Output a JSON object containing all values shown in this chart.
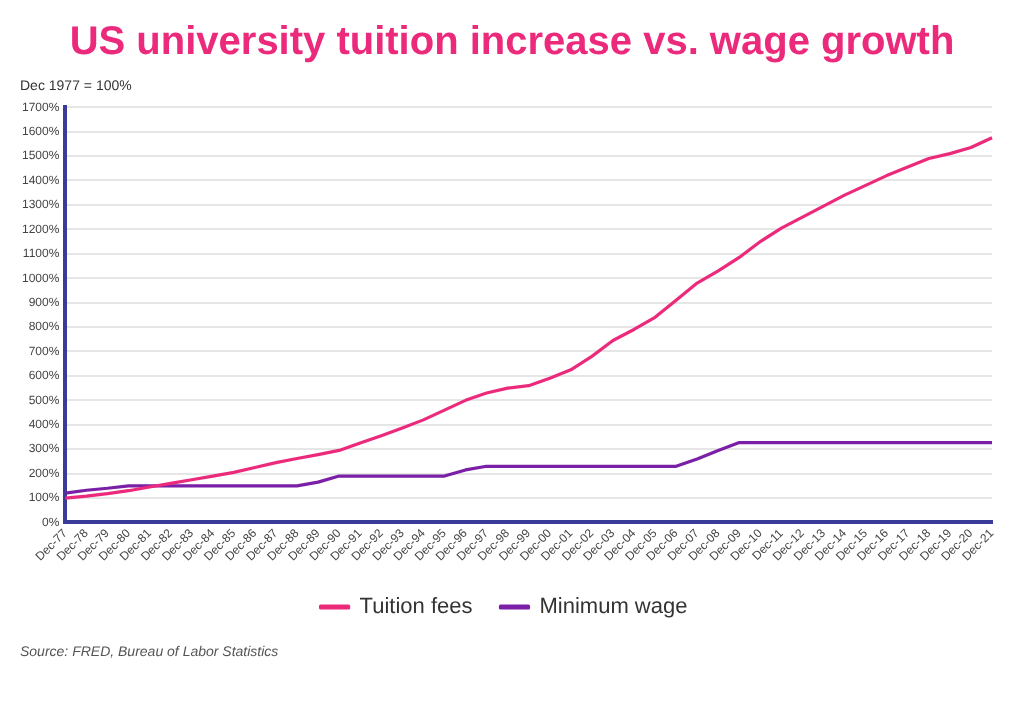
{
  "chart_data": {
    "type": "line",
    "title": "US university tuition increase vs. wage growth",
    "ylabel": "Dec 1977 = 100%",
    "categories": [
      "Dec-77",
      "Dec-78",
      "Dec-79",
      "Dec-80",
      "Dec-81",
      "Dec-82",
      "Dec-83",
      "Dec-84",
      "Dec-85",
      "Dec-86",
      "Dec-87",
      "Dec-88",
      "Dec-89",
      "Dec-90",
      "Dec-91",
      "Dec-92",
      "Dec-93",
      "Dec-94",
      "Dec-95",
      "Dec-96",
      "Dec-97",
      "Dec-98",
      "Dec-99",
      "Dec-00",
      "Dec-01",
      "Dec-02",
      "Dec-03",
      "Dec-04",
      "Dec-05",
      "Dec-06",
      "Dec-07",
      "Dec-08",
      "Dec-09",
      "Dec-10",
      "Dec-11",
      "Dec-12",
      "Dec-13",
      "Dec-14",
      "Dec-15",
      "Dec-16",
      "Dec-17",
      "Dec-18",
      "Dec-19",
      "Dec-20",
      "Dec-21"
    ],
    "series": [
      {
        "name": "Tuition fees",
        "color": "#ec2a7c",
        "values": [
          100,
          108,
          118,
          130,
          145,
          160,
          175,
          190,
          205,
          225,
          245,
          262,
          278,
          295,
          325,
          355,
          387,
          420,
          460,
          500,
          530,
          550,
          560,
          590,
          625,
          680,
          745,
          790,
          840,
          910,
          980,
          1030,
          1085,
          1150,
          1205,
          1250,
          1295,
          1340,
          1380,
          1420,
          1455,
          1490,
          1510,
          1535,
          1575
        ]
      },
      {
        "name": "Minimum wage",
        "color": "#7a1fa6",
        "values": [
          120,
          132,
          140,
          150,
          150,
          150,
          150,
          150,
          150,
          150,
          150,
          150,
          165,
          190,
          190,
          190,
          190,
          190,
          190,
          215,
          230,
          230,
          230,
          230,
          230,
          230,
          230,
          230,
          230,
          230,
          260,
          295,
          327,
          327,
          327,
          327,
          327,
          327,
          327,
          327,
          327,
          327,
          327,
          327,
          327
        ]
      }
    ],
    "ylim": [
      0,
      1700
    ],
    "yticks": [
      {
        "value": 0,
        "label": "0%"
      },
      {
        "value": 100,
        "label": "100%"
      },
      {
        "value": 200,
        "label": "200%"
      },
      {
        "value": 300,
        "label": "300%"
      },
      {
        "value": 400,
        "label": "400%"
      },
      {
        "value": 500,
        "label": "500%"
      },
      {
        "value": 600,
        "label": "600%"
      },
      {
        "value": 700,
        "label": "700%"
      },
      {
        "value": 800,
        "label": "800%"
      },
      {
        "value": 900,
        "label": "900%"
      },
      {
        "value": 1000,
        "label": "1000%"
      },
      {
        "value": 1100,
        "label": "1100%"
      },
      {
        "value": 1200,
        "label": "1200%"
      },
      {
        "value": 1300,
        "label": "1300%"
      },
      {
        "value": 1400,
        "label": "1400%"
      },
      {
        "value": 1500,
        "label": "1500%"
      },
      {
        "value": 1600,
        "label": "1600%"
      },
      {
        "value": 1700,
        "label": "1700%"
      }
    ],
    "grid": "y",
    "legend": "bottom",
    "marker": "none",
    "line_style": "solid",
    "annotations": [
      "Source: FRED, Bureau of Labor Statistics"
    ]
  }
}
